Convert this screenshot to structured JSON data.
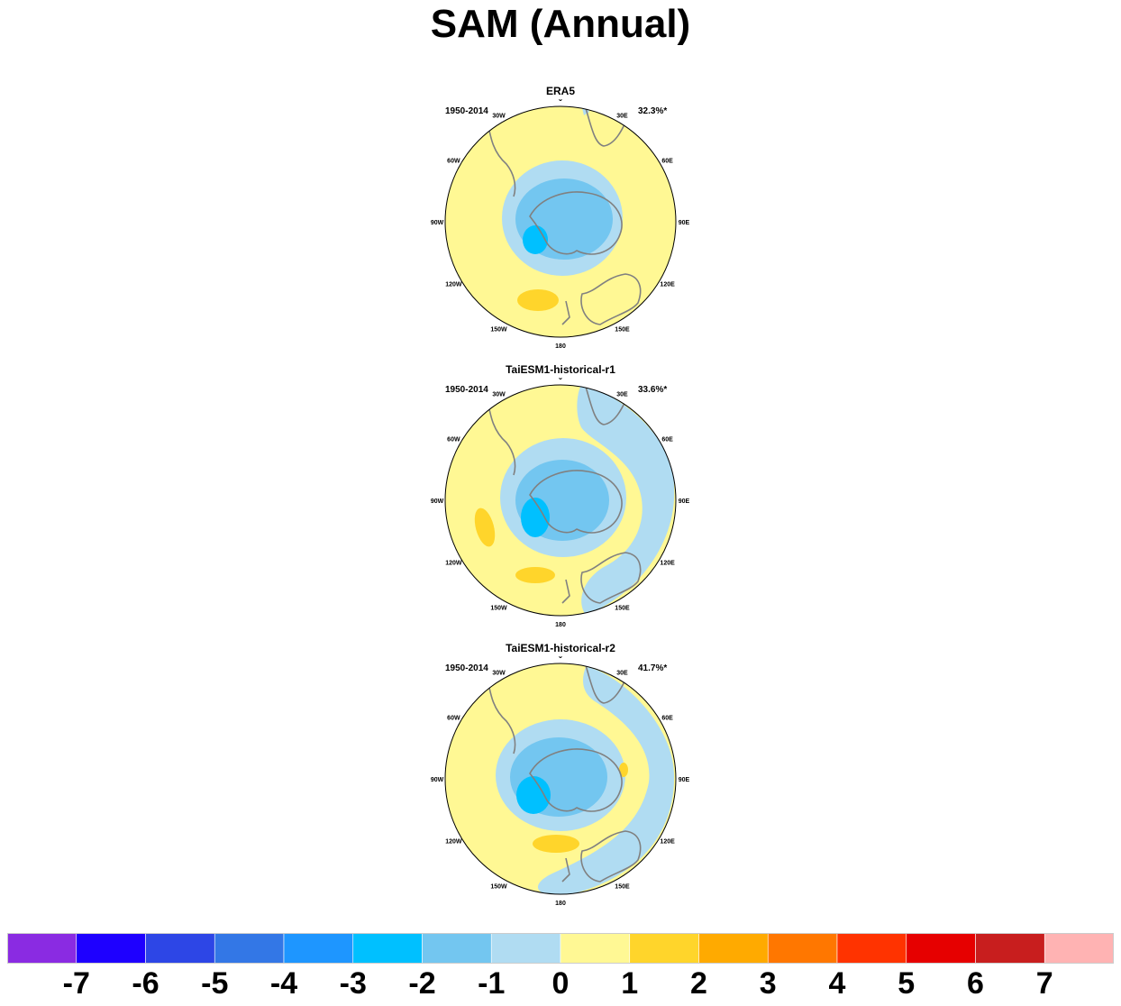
{
  "title": "SAM (Annual)",
  "chart_data": [
    {
      "type": "heatmap",
      "projection": "south polar stereographic",
      "title": "ERA5",
      "period": "1950-2014",
      "explained_variance": "32.3%*",
      "longitude_labels": [
        "0",
        "30E",
        "60E",
        "90E",
        "120E",
        "150E",
        "180",
        "150W",
        "120W",
        "90W",
        "60W",
        "30W"
      ],
      "pattern": "negative center over Antarctica (min about -3), positive ring (about +1, locally +2 near 165W)"
    },
    {
      "type": "heatmap",
      "projection": "south polar stereographic",
      "title": "TaiESM1-historical-r1",
      "period": "1950-2014",
      "explained_variance": "33.6%*",
      "longitude_labels": [
        "0",
        "30E",
        "60E",
        "90E",
        "120E",
        "150E",
        "180",
        "150W",
        "120W",
        "90W",
        "60W",
        "30W"
      ],
      "pattern": "negative center over Antarctica (min about -3), positive mid-latitude ring, weak negative band from 30E to 180"
    },
    {
      "type": "heatmap",
      "projection": "south polar stereographic",
      "title": "TaiESM1-historical-r2",
      "period": "1950-2014",
      "explained_variance": "41.7%*",
      "longitude_labels": [
        "0",
        "30E",
        "60E",
        "90E",
        "120E",
        "150E",
        "180",
        "150W",
        "120W",
        "90W",
        "60W",
        "30W"
      ],
      "pattern": "negative center over Antarctica (min about -4), positive mid-latitude ring, weak negative band from 30E to 160W"
    }
  ],
  "colorbar": {
    "colors": [
      "#8a2be2",
      "#1e00ff",
      "#2d46e6",
      "#3377e6",
      "#1e96ff",
      "#00c0ff",
      "#73c6f0",
      "#b0dcf2",
      "#fff894",
      "#ffd52b",
      "#ffaa00",
      "#ff7700",
      "#ff3300",
      "#e60000",
      "#c81e1e",
      "#ffb3b3"
    ],
    "labels": [
      "-7",
      "-6",
      "-5",
      "-4",
      "-3",
      "-2",
      "-1",
      "0",
      "1",
      "2",
      "3",
      "4",
      "5",
      "6",
      "7"
    ]
  }
}
